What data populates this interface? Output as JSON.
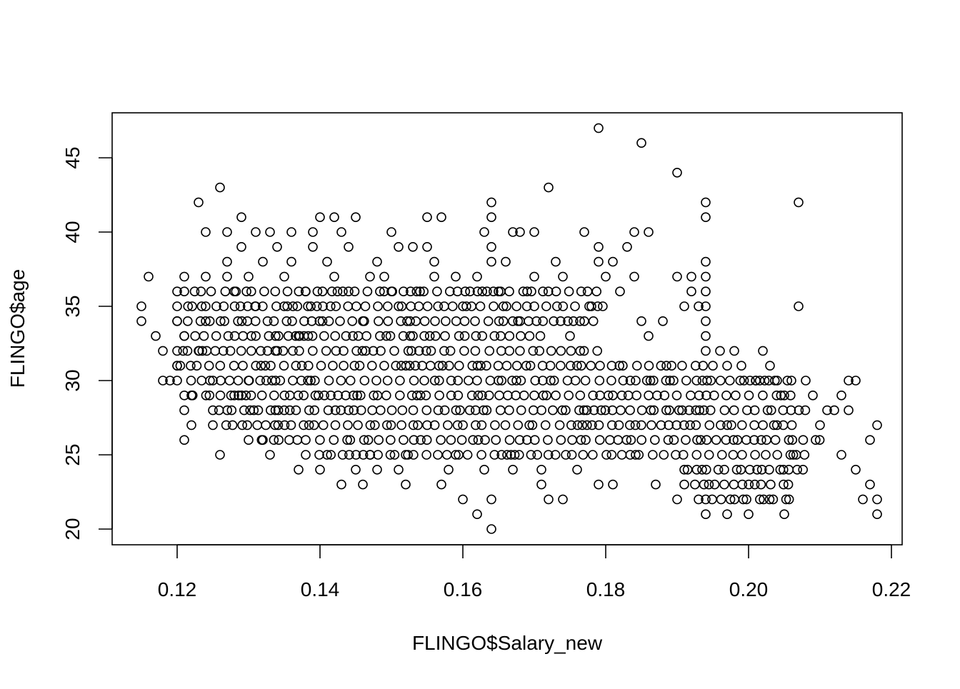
{
  "chart_data": {
    "type": "scatter",
    "title": "",
    "xlabel": "FLINGO$Salary_new",
    "ylabel": "FLINGO$age",
    "xlim": [
      0.11,
      0.22
    ],
    "ylim": [
      19.4,
      47.6
    ],
    "xticks": [
      0.12,
      0.14,
      0.16,
      0.18,
      0.2,
      0.22
    ],
    "xtick_labels": [
      "0.12",
      "0.14",
      "0.16",
      "0.18",
      "0.20",
      "0.22"
    ],
    "yticks": [
      20,
      25,
      30,
      35,
      40,
      45
    ],
    "ytick_labels": [
      "20",
      "25",
      "30",
      "35",
      "40",
      "45"
    ],
    "grid": false,
    "legend": "none",
    "marker": "open-circle",
    "colors": {
      "points": "#000000",
      "axes": "#000000",
      "background": "#ffffff"
    },
    "series": [
      {
        "points": [
          [
            0.115,
            35
          ],
          [
            0.115,
            34
          ],
          [
            0.116,
            37
          ],
          [
            0.117,
            33
          ],
          [
            0.118,
            32
          ],
          [
            0.118,
            30
          ],
          [
            0.119,
            30
          ],
          [
            0.12,
            36
          ],
          [
            0.12,
            34
          ],
          [
            0.12,
            31
          ],
          [
            0.121,
            37
          ],
          [
            0.121,
            33
          ],
          [
            0.121,
            28
          ],
          [
            0.121,
            26
          ],
          [
            0.122,
            29
          ],
          [
            0.122,
            27
          ],
          [
            0.123,
            42
          ],
          [
            0.123,
            32
          ],
          [
            0.124,
            37
          ],
          [
            0.124,
            40
          ],
          [
            0.124,
            34
          ],
          [
            0.125,
            30
          ],
          [
            0.126,
            43
          ],
          [
            0.126,
            25
          ],
          [
            0.127,
            37
          ],
          [
            0.127,
            40
          ],
          [
            0.127,
            38
          ],
          [
            0.128,
            36
          ],
          [
            0.128,
            29
          ],
          [
            0.129,
            41
          ],
          [
            0.129,
            39
          ],
          [
            0.13,
            37
          ],
          [
            0.13,
            30
          ],
          [
            0.131,
            40
          ],
          [
            0.131,
            35
          ],
          [
            0.132,
            26
          ],
          [
            0.132,
            38
          ],
          [
            0.133,
            40
          ],
          [
            0.133,
            25
          ],
          [
            0.134,
            39
          ],
          [
            0.134,
            32
          ],
          [
            0.135,
            37
          ],
          [
            0.135,
            28
          ],
          [
            0.136,
            40
          ],
          [
            0.136,
            38
          ],
          [
            0.137,
            33
          ],
          [
            0.137,
            24
          ],
          [
            0.138,
            36
          ],
          [
            0.139,
            40
          ],
          [
            0.139,
            39
          ],
          [
            0.14,
            41
          ],
          [
            0.14,
            24
          ],
          [
            0.141,
            38
          ],
          [
            0.141,
            25
          ],
          [
            0.142,
            41
          ],
          [
            0.142,
            37
          ],
          [
            0.143,
            40
          ],
          [
            0.143,
            23
          ],
          [
            0.144,
            39
          ],
          [
            0.144,
            36
          ],
          [
            0.145,
            41
          ],
          [
            0.145,
            24
          ],
          [
            0.146,
            23
          ],
          [
            0.146,
            34
          ],
          [
            0.147,
            37
          ],
          [
            0.147,
            25
          ],
          [
            0.148,
            38
          ],
          [
            0.148,
            24
          ],
          [
            0.149,
            37
          ],
          [
            0.15,
            40
          ],
          [
            0.15,
            36
          ],
          [
            0.151,
            39
          ],
          [
            0.151,
            24
          ],
          [
            0.152,
            23
          ],
          [
            0.152,
            25
          ],
          [
            0.153,
            39
          ],
          [
            0.153,
            33
          ],
          [
            0.154,
            36
          ],
          [
            0.155,
            39
          ],
          [
            0.155,
            41
          ],
          [
            0.156,
            38
          ],
          [
            0.156,
            37
          ],
          [
            0.157,
            41
          ],
          [
            0.157,
            23
          ],
          [
            0.158,
            24
          ],
          [
            0.159,
            37
          ],
          [
            0.159,
            25
          ],
          [
            0.16,
            22
          ],
          [
            0.16,
            35
          ],
          [
            0.161,
            36
          ],
          [
            0.162,
            37
          ],
          [
            0.162,
            21
          ],
          [
            0.163,
            40
          ],
          [
            0.163,
            24
          ],
          [
            0.164,
            42
          ],
          [
            0.164,
            41
          ],
          [
            0.164,
            39
          ],
          [
            0.164,
            38
          ],
          [
            0.164,
            22
          ],
          [
            0.164,
            20
          ],
          [
            0.165,
            36
          ],
          [
            0.166,
            38
          ],
          [
            0.167,
            24
          ],
          [
            0.167,
            40
          ],
          [
            0.168,
            40
          ],
          [
            0.168,
            34
          ],
          [
            0.169,
            36
          ],
          [
            0.17,
            40
          ],
          [
            0.17,
            37
          ],
          [
            0.171,
            24
          ],
          [
            0.171,
            23
          ],
          [
            0.172,
            43
          ],
          [
            0.172,
            22
          ],
          [
            0.173,
            38
          ],
          [
            0.174,
            22
          ],
          [
            0.174,
            37
          ],
          [
            0.175,
            33
          ],
          [
            0.176,
            24
          ],
          [
            0.177,
            40
          ],
          [
            0.178,
            35
          ],
          [
            0.179,
            47
          ],
          [
            0.179,
            39
          ],
          [
            0.179,
            38
          ],
          [
            0.179,
            23
          ],
          [
            0.18,
            37
          ],
          [
            0.181,
            38
          ],
          [
            0.181,
            23
          ],
          [
            0.182,
            36
          ],
          [
            0.183,
            39
          ],
          [
            0.184,
            37
          ],
          [
            0.184,
            40
          ],
          [
            0.185,
            46
          ],
          [
            0.185,
            34
          ],
          [
            0.186,
            40
          ],
          [
            0.186,
            33
          ],
          [
            0.187,
            23
          ],
          [
            0.188,
            34
          ],
          [
            0.189,
            30
          ],
          [
            0.19,
            44
          ],
          [
            0.19,
            37
          ],
          [
            0.19,
            22
          ],
          [
            0.191,
            35
          ],
          [
            0.192,
            36
          ],
          [
            0.192,
            37
          ],
          [
            0.193,
            35
          ],
          [
            0.194,
            42
          ],
          [
            0.194,
            41
          ],
          [
            0.194,
            38
          ],
          [
            0.194,
            37
          ],
          [
            0.194,
            36
          ],
          [
            0.194,
            35
          ],
          [
            0.194,
            34
          ],
          [
            0.194,
            33
          ],
          [
            0.194,
            32
          ],
          [
            0.194,
            22
          ],
          [
            0.194,
            21
          ],
          [
            0.195,
            31
          ],
          [
            0.196,
            32
          ],
          [
            0.197,
            31
          ],
          [
            0.197,
            21
          ],
          [
            0.198,
            32
          ],
          [
            0.199,
            31
          ],
          [
            0.2,
            21
          ],
          [
            0.201,
            30
          ],
          [
            0.202,
            32
          ],
          [
            0.203,
            31
          ],
          [
            0.204,
            30
          ],
          [
            0.205,
            29
          ],
          [
            0.205,
            21
          ],
          [
            0.206,
            30
          ],
          [
            0.207,
            42
          ],
          [
            0.207,
            35
          ],
          [
            0.208,
            30
          ],
          [
            0.209,
            29
          ],
          [
            0.21,
            27
          ],
          [
            0.211,
            28
          ],
          [
            0.212,
            28
          ],
          [
            0.213,
            29
          ],
          [
            0.213,
            25
          ],
          [
            0.214,
            30
          ],
          [
            0.214,
            28
          ],
          [
            0.215,
            30
          ],
          [
            0.215,
            24
          ],
          [
            0.216,
            22
          ],
          [
            0.217,
            26
          ],
          [
            0.217,
            23
          ],
          [
            0.218,
            27
          ],
          [
            0.218,
            21
          ],
          [
            0.218,
            22
          ]
        ]
      }
    ],
    "dense_bands": [
      {
        "y": 36,
        "x_from": 0.121,
        "x_to": 0.18
      },
      {
        "y": 35,
        "x_from": 0.12,
        "x_to": 0.18
      },
      {
        "y": 34,
        "x_from": 0.12,
        "x_to": 0.18
      },
      {
        "y": 33,
        "x_from": 0.121,
        "x_to": 0.171
      },
      {
        "y": 32,
        "x_from": 0.12,
        "x_to": 0.18
      },
      {
        "y": 31,
        "x_from": 0.12,
        "x_to": 0.194
      },
      {
        "y": 30,
        "x_from": 0.12,
        "x_to": 0.206
      },
      {
        "y": 29,
        "x_from": 0.121,
        "x_to": 0.206
      },
      {
        "y": 28,
        "x_from": 0.125,
        "x_to": 0.208
      },
      {
        "y": 27,
        "x_from": 0.125,
        "x_to": 0.208
      },
      {
        "y": 26,
        "x_from": 0.13,
        "x_to": 0.21
      },
      {
        "y": 25,
        "x_from": 0.138,
        "x_to": 0.209
      },
      {
        "y": 24,
        "x_from": 0.191,
        "x_to": 0.208
      },
      {
        "y": 23,
        "x_from": 0.191,
        "x_to": 0.206
      },
      {
        "y": 22,
        "x_from": 0.193,
        "x_to": 0.206
      }
    ]
  }
}
